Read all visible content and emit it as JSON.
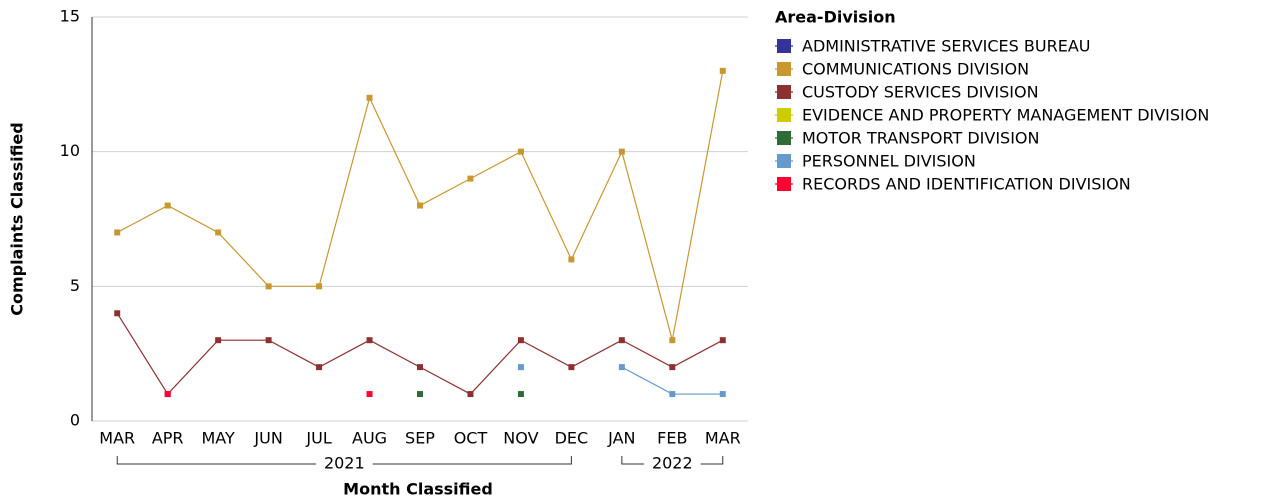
{
  "chart_data": {
    "type": "line",
    "y_label": "Complaints Classified",
    "x_label": "Month Classified",
    "legend_title": "Area-Division",
    "legend": "right",
    "grid": true,
    "categories": [
      "MAR",
      "APR",
      "MAY",
      "JUN",
      "JUL",
      "AUG",
      "SEP",
      "OCT",
      "NOV",
      "DEC",
      "JAN",
      "FEB",
      "MAR"
    ],
    "year_groups": [
      {
        "label": "2021",
        "span": 10
      },
      {
        "label": "2022",
        "span": 3
      }
    ],
    "ylim": [
      0,
      15
    ],
    "yticks": [
      0,
      5,
      10,
      15
    ],
    "series": [
      {
        "name": "ADMINISTRATIVE SERVICES BUREAU",
        "color": "#333399",
        "values": [
          null,
          null,
          null,
          null,
          null,
          null,
          null,
          null,
          null,
          null,
          null,
          null,
          null
        ]
      },
      {
        "name": "COMMUNICATIONS DIVISION",
        "color": "#c9972f",
        "values": [
          7,
          8,
          7,
          5,
          5,
          12,
          8,
          9,
          10,
          6,
          10,
          3,
          13
        ]
      },
      {
        "name": "CUSTODY SERVICES DIVISION",
        "color": "#8e3030",
        "values": [
          4,
          1,
          3,
          3,
          2,
          3,
          2,
          1,
          3,
          2,
          3,
          2,
          3
        ]
      },
      {
        "name": "EVIDENCE AND PROPERTY MANAGEMENT DIVISION",
        "color": "#cccc00",
        "values": [
          null,
          null,
          null,
          null,
          null,
          null,
          null,
          null,
          null,
          null,
          null,
          null,
          null
        ]
      },
      {
        "name": "MOTOR TRANSPORT DIVISION",
        "color": "#2f6b35",
        "values": [
          null,
          null,
          null,
          null,
          null,
          null,
          1,
          null,
          1,
          null,
          null,
          null,
          null
        ]
      },
      {
        "name": "PERSONNEL DIVISION",
        "color": "#6699cc",
        "values": [
          null,
          null,
          null,
          null,
          null,
          null,
          null,
          null,
          2,
          null,
          2,
          1,
          1
        ]
      },
      {
        "name": "RECORDS AND IDENTIFICATION DIVISION",
        "color": "#ff0033",
        "values": [
          null,
          1,
          null,
          null,
          null,
          1,
          null,
          null,
          null,
          null,
          null,
          null,
          null
        ]
      }
    ]
  }
}
